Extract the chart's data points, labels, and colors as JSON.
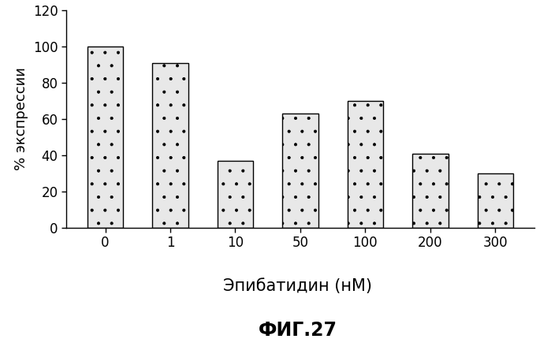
{
  "categories": [
    "0",
    "1",
    "10",
    "50",
    "100",
    "200",
    "300"
  ],
  "values": [
    100,
    91,
    37,
    63,
    70,
    41,
    30
  ],
  "bar_color": "#e8e8e8",
  "bar_edge_color": "#000000",
  "bar_width": 0.55,
  "xlabel": "Эпибатидин (нМ)",
  "ylabel": "% экспрессии",
  "ylim": [
    0,
    120
  ],
  "yticks": [
    0,
    20,
    40,
    60,
    80,
    100,
    120
  ],
  "xlabel_fontsize": 15,
  "ylabel_fontsize": 13,
  "title_fontsize": 17,
  "tick_fontsize": 12,
  "background_color": "#ffffff",
  "hatch_pattern": ".",
  "fig_title": "ФИГ.27"
}
